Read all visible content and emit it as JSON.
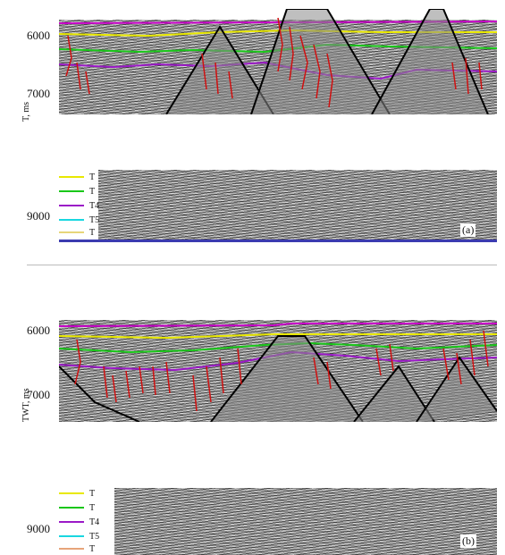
{
  "panel_a": {
    "axis_label": "T, ms",
    "ticks": [
      "6000",
      "7000",
      "9000"
    ],
    "tag": "(a)",
    "legend": [
      {
        "label": "T",
        "color": "#e8e800"
      },
      {
        "label": "T",
        "color": "#19c719"
      },
      {
        "label": "T4",
        "color": "#9b19c7"
      },
      {
        "label": "T5",
        "color": "#19d7e0"
      },
      {
        "label": "T",
        "color": "#e7d67a"
      }
    ]
  },
  "panel_b": {
    "axis_label": "TWT, ms",
    "ticks": [
      "6000",
      "7000",
      "9000"
    ],
    "tag": "(b)",
    "legend": [
      {
        "label": "T",
        "color": "#e8e800"
      },
      {
        "label": "T",
        "color": "#19c719"
      },
      {
        "label": "T4",
        "color": "#9b19c7"
      },
      {
        "label": "T5",
        "color": "#19d7e0"
      },
      {
        "label": "T",
        "color": "#e7a47a"
      }
    ]
  },
  "colors": {
    "fault": "#d01010",
    "basement": "#000000",
    "surface": "#ffffff"
  }
}
